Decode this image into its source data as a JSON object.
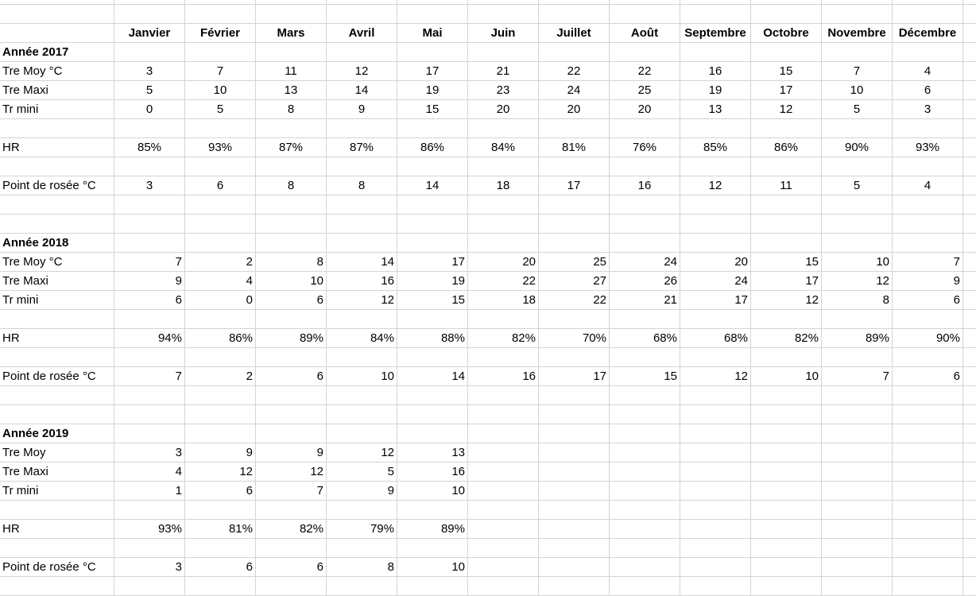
{
  "months": [
    "Janvier",
    "Février",
    "Mars",
    "Avril",
    "Mai",
    "Juin",
    "Juillet",
    "Août",
    "Septembre",
    "Octobre",
    "Novembre",
    "Décembre"
  ],
  "years": [
    {
      "title": "Année 2017",
      "align": "center",
      "rows": {
        "moy": {
          "label": "Tre Moy °C",
          "values": [
            "3",
            "7",
            "11",
            "12",
            "17",
            "21",
            "22",
            "22",
            "16",
            "15",
            "7",
            "4"
          ]
        },
        "maxi": {
          "label": "Tre Maxi",
          "values": [
            "5",
            "10",
            "13",
            "14",
            "19",
            "23",
            "24",
            "25",
            "19",
            "17",
            "10",
            "6"
          ]
        },
        "mini": {
          "label": "Tr mini",
          "values": [
            "0",
            "5",
            "8",
            "9",
            "15",
            "20",
            "20",
            "20",
            "13",
            "12",
            "5",
            "3"
          ]
        },
        "hr": {
          "label": "HR",
          "values": [
            "85%",
            "93%",
            "87%",
            "87%",
            "86%",
            "84%",
            "81%",
            "76%",
            "85%",
            "86%",
            "90%",
            "93%"
          ]
        },
        "rosee": {
          "label": "Point de rosée °C",
          "values": [
            "3",
            "6",
            "8",
            "8",
            "14",
            "18",
            "17",
            "16",
            "12",
            "11",
            "5",
            "4"
          ]
        }
      }
    },
    {
      "title": "Année 2018",
      "align": "right",
      "rows": {
        "moy": {
          "label": "Tre Moy °C",
          "values": [
            "7",
            "2",
            "8",
            "14",
            "17",
            "20",
            "25",
            "24",
            "20",
            "15",
            "10",
            "7"
          ]
        },
        "maxi": {
          "label": "Tre Maxi",
          "values": [
            "9",
            "4",
            "10",
            "16",
            "19",
            "22",
            "27",
            "26",
            "24",
            "17",
            "12",
            "9"
          ]
        },
        "mini": {
          "label": "Tr mini",
          "values": [
            "6",
            "0",
            "6",
            "12",
            "15",
            "18",
            "22",
            "21",
            "17",
            "12",
            "8",
            "6"
          ]
        },
        "hr": {
          "label": "HR",
          "values": [
            "94%",
            "86%",
            "89%",
            "84%",
            "88%",
            "82%",
            "70%",
            "68%",
            "68%",
            "82%",
            "89%",
            "90%"
          ]
        },
        "rosee": {
          "label": "Point de rosée °C",
          "values": [
            "7",
            "2",
            "6",
            "10",
            "14",
            "16",
            "17",
            "15",
            "12",
            "10",
            "7",
            "6"
          ]
        }
      }
    },
    {
      "title": "Année 2019",
      "align": "right",
      "rows": {
        "moy": {
          "label": "Tre Moy",
          "values": [
            "3",
            "9",
            "9",
            "12",
            "13"
          ]
        },
        "maxi": {
          "label": "Tre Maxi",
          "values": [
            "4",
            "12",
            "12",
            "5",
            "16"
          ]
        },
        "mini": {
          "label": "Tr mini",
          "values": [
            "1",
            "6",
            "7",
            "9",
            "10"
          ]
        },
        "hr": {
          "label": "HR",
          "values": [
            "93%",
            "81%",
            "82%",
            "79%",
            "89%"
          ]
        },
        "rosee": {
          "label": "Point de rosée °C",
          "values": [
            "3",
            "6",
            "6",
            "8",
            "10"
          ]
        }
      }
    }
  ],
  "gridline_color": "#d4d4d4"
}
